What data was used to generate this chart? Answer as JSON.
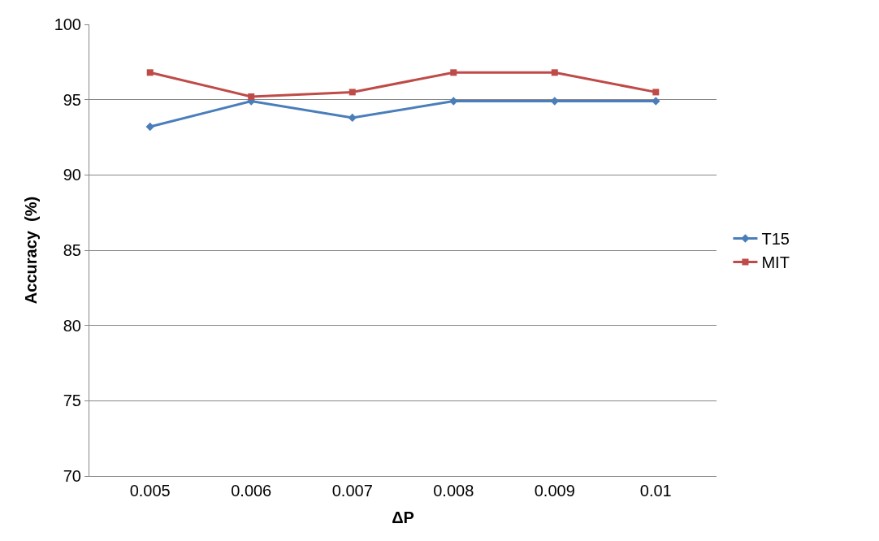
{
  "chart_data": {
    "type": "line",
    "xlabel": "ΔP",
    "ylabel": "Accuracy  (%)",
    "categories": [
      "0.005",
      "0.006",
      "0.007",
      "0.008",
      "0.009",
      "0.01"
    ],
    "series": [
      {
        "name": "T15",
        "color": "#4a7ebb",
        "marker": "diamond",
        "values": [
          93.2,
          94.9,
          93.8,
          94.9,
          94.9,
          94.9
        ]
      },
      {
        "name": "MIT",
        "color": "#be4b48",
        "marker": "square",
        "values": [
          96.8,
          95.2,
          95.5,
          96.8,
          96.8,
          95.5
        ]
      }
    ],
    "ylim": [
      70,
      100
    ],
    "yticks": [
      70,
      75,
      80,
      85,
      90,
      95,
      100
    ],
    "grid": "y",
    "legend": "right",
    "line_style": "solid"
  }
}
